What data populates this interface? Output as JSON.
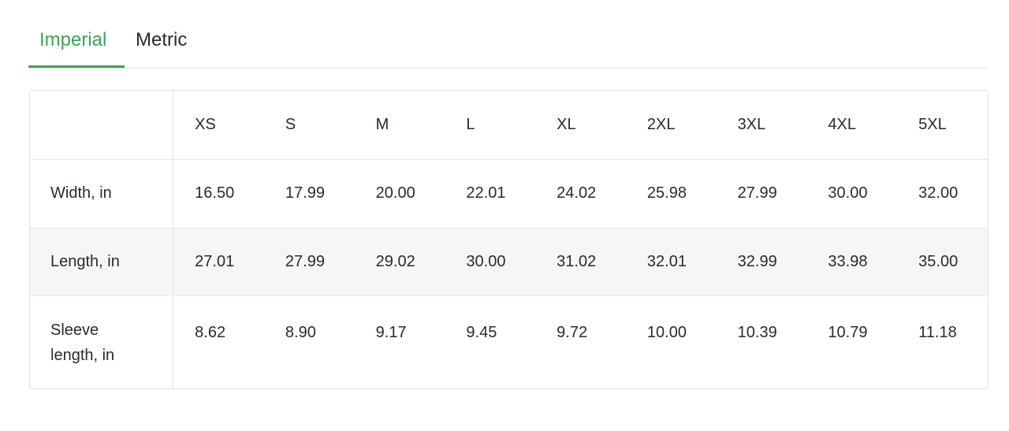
{
  "tabs": [
    {
      "label": "Imperial",
      "active": true
    },
    {
      "label": "Metric",
      "active": false
    }
  ],
  "colors": {
    "accent": "#3ba552",
    "text": "#262b30",
    "stripe": "#f6f6f6"
  },
  "table": {
    "sizes": [
      "XS",
      "S",
      "M",
      "L",
      "XL",
      "2XL",
      "3XL",
      "4XL",
      "5XL"
    ],
    "rows": [
      {
        "label": "Width, in",
        "values": [
          "16.50",
          "17.99",
          "20.00",
          "22.01",
          "24.02",
          "25.98",
          "27.99",
          "30.00",
          "32.00"
        ]
      },
      {
        "label": "Length, in",
        "values": [
          "27.01",
          "27.99",
          "29.02",
          "30.00",
          "31.02",
          "32.01",
          "32.99",
          "33.98",
          "35.00"
        ]
      },
      {
        "label": "Sleeve length, in",
        "values": [
          "8.62",
          "8.90",
          "9.17",
          "9.45",
          "9.72",
          "10.00",
          "10.39",
          "10.79",
          "11.18"
        ]
      }
    ]
  }
}
